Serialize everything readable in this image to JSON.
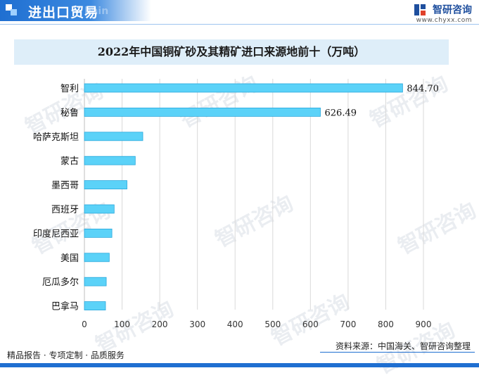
{
  "header": {
    "section_title": "进出口贸易",
    "ghost_text": "hain",
    "brand_name": "智研咨询",
    "brand_url": "www.chyxx.com"
  },
  "chart_title": "2022年中国铜矿砂及其精矿进口来源地前十（万吨）",
  "chart_data": {
    "type": "bar",
    "orientation": "horizontal",
    "title": "2022年中国铜矿砂及其精矿进口来源地前十（万吨）",
    "categories": [
      "智利",
      "秘鲁",
      "哈萨克斯坦",
      "蒙古",
      "墨西哥",
      "西班牙",
      "印度尼西亚",
      "美国",
      "厄瓜多尔",
      "巴拿马"
    ],
    "values": [
      844.7,
      626.49,
      155,
      135,
      113,
      79,
      73,
      66,
      58,
      56
    ],
    "data_labels": [
      "844.70",
      "626.49",
      "",
      "",
      "",
      "",
      "",
      "",
      "",
      ""
    ],
    "xlim": [
      0,
      900
    ],
    "xticks": [
      "0",
      "100",
      "200",
      "300",
      "400",
      "500",
      "600",
      "700",
      "800",
      "900"
    ],
    "grid": true,
    "bar_color": "#5bd2f8",
    "bar_border": "#2aa8dc"
  },
  "watermark_text": "智研咨询",
  "footer": {
    "left": "精品报告 · 专项定制 · 品质服务",
    "right": "资料来源：中国海关、智研咨询整理"
  }
}
